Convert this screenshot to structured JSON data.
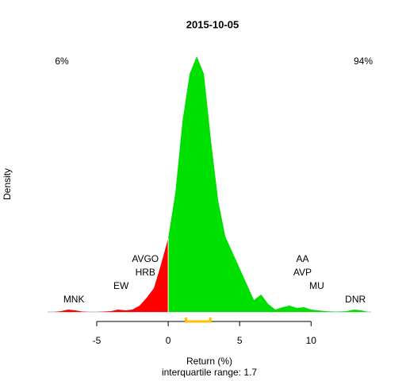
{
  "chart_data": {
    "type": "area",
    "title": "2015-10-05",
    "x_label": "Return (%)",
    "subtitle": "interquartile range: 1.7",
    "y_label": "Density",
    "left_share": "6%",
    "right_share": "94%",
    "left_color": "#ff0000",
    "right_color": "#00e000",
    "split": 0,
    "x": [
      -8,
      -7.5,
      -7,
      -6.5,
      -6,
      -5.5,
      -5,
      -4.5,
      -4,
      -3.5,
      -3,
      -2.5,
      -2,
      -1.5,
      -1,
      -0.5,
      0,
      0.5,
      1,
      1.5,
      2,
      2.5,
      3,
      3.5,
      4,
      4.5,
      5,
      5.5,
      6,
      6.5,
      7,
      7.5,
      8,
      8.5,
      9,
      9.5,
      10,
      10.5,
      11,
      11.5,
      12,
      12.5,
      13,
      13.5,
      14
    ],
    "values": [
      0,
      0.001,
      0.003,
      0.002,
      0.0005,
      0,
      0,
      0.0005,
      0.001,
      0.003,
      0.002,
      0.003,
      0.008,
      0.018,
      0.03,
      0.06,
      0.093,
      0.15,
      0.24,
      0.3,
      0.322,
      0.3,
      0.215,
      0.14,
      0.095,
      0.075,
      0.055,
      0.035,
      0.015,
      0.022,
      0.01,
      0.003,
      0.006,
      0.008,
      0.005,
      0.006,
      0.003,
      0.002,
      0.001,
      0.0005,
      0.0005,
      0.001,
      0.003,
      0.002,
      0
    ],
    "xlim": [
      -8.44,
      14.2
    ],
    "ylim": [
      0,
      0.333
    ],
    "xticks": [
      -5,
      0,
      5,
      10
    ],
    "quartiles": [
      1.25,
      2.95
    ],
    "quartile_color": "#ffc000",
    "stocks": [
      {
        "label": "MNK",
        "x": -6.6
      },
      {
        "label": "EW",
        "x": -3.3
      },
      {
        "label": "AVGO",
        "x": -1.6
      },
      {
        "label": "HRB",
        "x": -1.6
      },
      {
        "label": "AA",
        "x": 9.4
      },
      {
        "label": "AVP",
        "x": 9.4
      },
      {
        "label": "MU",
        "x": 10.4
      },
      {
        "label": "DNR",
        "x": 13.1
      }
    ]
  }
}
